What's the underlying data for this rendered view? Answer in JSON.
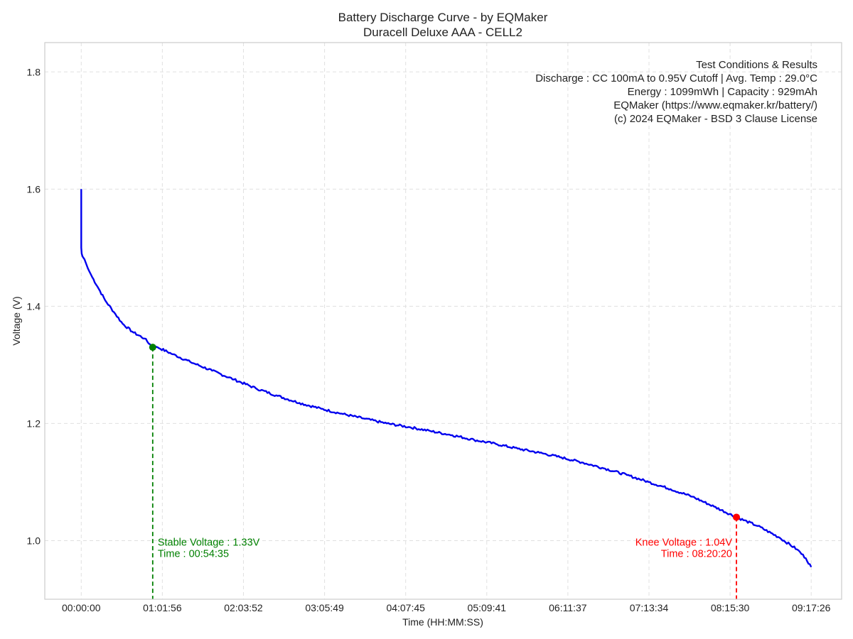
{
  "chart_data": {
    "type": "line",
    "title": "Battery Discharge Curve - by EQMaker",
    "subtitle": "Duracell Deluxe AAA - CELL2",
    "xlabel": "Time (HH:MM:SS)",
    "ylabel": "Voltage (V)",
    "x_unit": "seconds",
    "xlim": [
      -1670,
      34840
    ],
    "ylim": [
      0.9,
      1.85
    ],
    "xticks": [
      {
        "value": 0,
        "label": "00:00:00"
      },
      {
        "value": 3716,
        "label": "01:01:56"
      },
      {
        "value": 7432,
        "label": "02:03:52"
      },
      {
        "value": 11149,
        "label": "03:05:49"
      },
      {
        "value": 14865,
        "label": "04:07:45"
      },
      {
        "value": 18581,
        "label": "05:09:41"
      },
      {
        "value": 22297,
        "label": "06:11:37"
      },
      {
        "value": 26014,
        "label": "07:13:34"
      },
      {
        "value": 29730,
        "label": "08:15:30"
      },
      {
        "value": 33446,
        "label": "09:17:26"
      }
    ],
    "yticks": [
      {
        "value": 1.0,
        "label": "1.0"
      },
      {
        "value": 1.2,
        "label": "1.2"
      },
      {
        "value": 1.4,
        "label": "1.4"
      },
      {
        "value": 1.6,
        "label": "1.6"
      },
      {
        "value": 1.8,
        "label": "1.8"
      }
    ],
    "grid": true,
    "series": [
      {
        "color": "#0000ee",
        "x": [
          0,
          0,
          20,
          60,
          150,
          300,
          500,
          800,
          1100,
          1500,
          1900,
          2400,
          2900,
          3275,
          3500,
          4200,
          5000,
          6000,
          7000,
          8000,
          9000,
          10000,
          11000,
          12000,
          13000,
          14000,
          15000,
          16000,
          17000,
          18000,
          19000,
          20000,
          21000,
          22000,
          23000,
          24000,
          25000,
          26000,
          27000,
          28000,
          29000,
          30020,
          31000,
          32000,
          32800,
          33200,
          33446
        ],
        "y": [
          1.6,
          1.5,
          1.49,
          1.485,
          1.48,
          1.465,
          1.45,
          1.43,
          1.41,
          1.39,
          1.37,
          1.355,
          1.345,
          1.33,
          1.33,
          1.318,
          1.305,
          1.29,
          1.275,
          1.26,
          1.247,
          1.235,
          1.225,
          1.216,
          1.208,
          1.2,
          1.194,
          1.187,
          1.18,
          1.172,
          1.165,
          1.157,
          1.15,
          1.142,
          1.133,
          1.123,
          1.112,
          1.1,
          1.088,
          1.075,
          1.058,
          1.04,
          1.025,
          1.005,
          0.985,
          0.97,
          0.955
        ]
      }
    ],
    "annotations": [
      {
        "kind": "stable",
        "x": 3275,
        "y": 1.33,
        "color": "#008000",
        "line1": "Stable Voltage : 1.33V",
        "line2": "Time : 00:54:35"
      },
      {
        "kind": "knee",
        "x": 30020,
        "y": 1.04,
        "color": "#ff0000",
        "line1": "Knee Voltage : 1.04V",
        "line2": "Time : 08:20:20"
      }
    ],
    "info_box": {
      "placement": "top-right",
      "lines": [
        "Test Conditions & Results",
        "Discharge : CC 100mA to 0.95V Cutoff | Avg. Temp : 29.0°C",
        "Energy : 1099mWh | Capacity : 929mAh",
        "EQMaker (https://www.eqmaker.kr/battery/)",
        "(c) 2024 EQMaker - BSD 3 Clause License"
      ]
    }
  }
}
